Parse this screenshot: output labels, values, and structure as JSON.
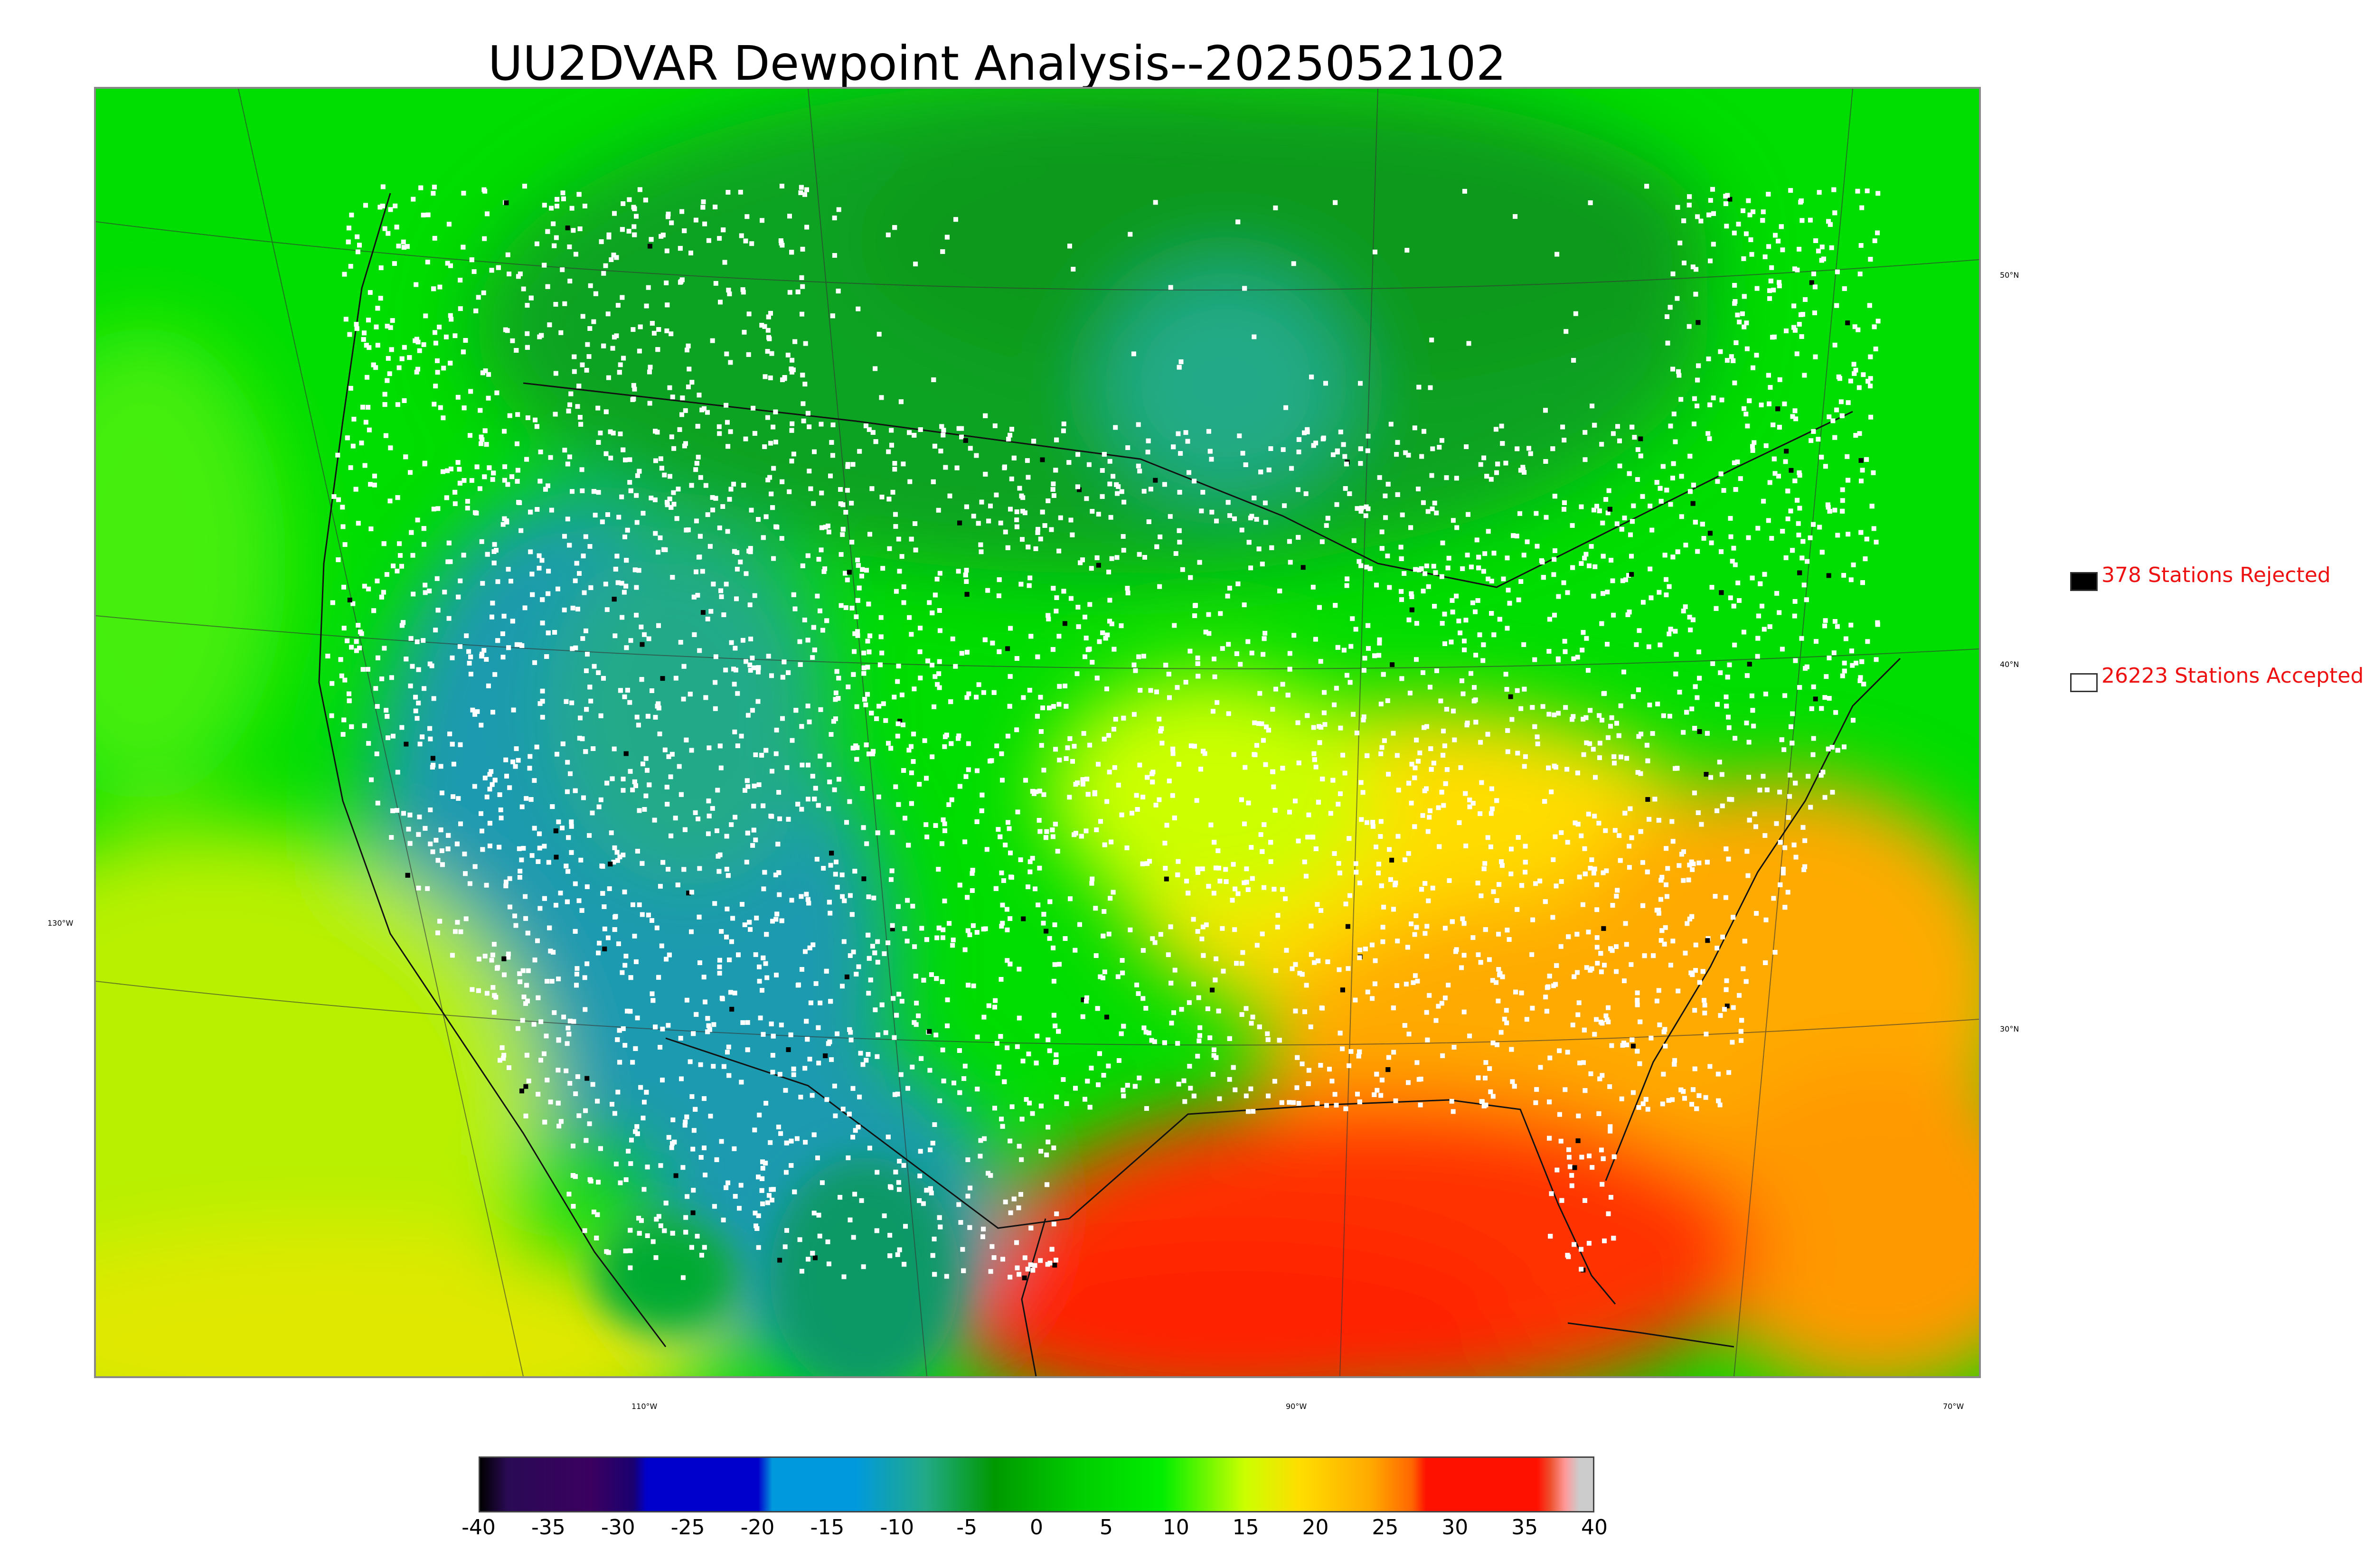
{
  "title": "UU2DVAR Dewpoint Analysis--2025052102",
  "legend": {
    "rejected": {
      "label": "378 Stations Rejected",
      "swatch_color": "#000000"
    },
    "accepted": {
      "label": "26223 Stations Accepted",
      "swatch_color": "#ffffff"
    },
    "text_color": "#ee1111"
  },
  "lat_labels": [
    "50°N",
    "40°N",
    "30°N"
  ],
  "lon_labels": [
    "130°W",
    "110°W",
    "90°W",
    "70°W"
  ],
  "colorbar": {
    "ticks": [
      "-40",
      "-35",
      "-30",
      "-25",
      "-20",
      "-15",
      "-10",
      "-5",
      "0",
      "5",
      "10",
      "15",
      "20",
      "25",
      "30",
      "35",
      "40"
    ],
    "min": -40,
    "max": 40,
    "stops": [
      {
        "value": -40,
        "color": "#000000"
      },
      {
        "value": -38,
        "color": "#2a0a55"
      },
      {
        "value": -32,
        "color": "#3b0060"
      },
      {
        "value": -29,
        "color": "#1a0070"
      },
      {
        "value": -28,
        "color": "#0000cc"
      },
      {
        "value": -20,
        "color": "#0000cc"
      },
      {
        "value": -19,
        "color": "#0099dd"
      },
      {
        "value": -13,
        "color": "#0099dd"
      },
      {
        "value": -8,
        "color": "#22aa88"
      },
      {
        "value": -3,
        "color": "#009900"
      },
      {
        "value": 3,
        "color": "#00cc00"
      },
      {
        "value": 9,
        "color": "#00ee00"
      },
      {
        "value": 15,
        "color": "#ccff00"
      },
      {
        "value": 19,
        "color": "#ffdd00"
      },
      {
        "value": 24,
        "color": "#ffaa00"
      },
      {
        "value": 27,
        "color": "#ff6600"
      },
      {
        "value": 28,
        "color": "#ff1100"
      },
      {
        "value": 36,
        "color": "#ff1100"
      },
      {
        "value": 37,
        "color": "#ee5533"
      },
      {
        "value": 38,
        "color": "#ff9999"
      },
      {
        "value": 39,
        "color": "#cccccc"
      },
      {
        "value": 40,
        "color": "#cccccc"
      }
    ]
  },
  "colors": {
    "frame": "#888888",
    "dry_blue": "#1a9ab0",
    "dark_green": "#0a9a1a",
    "green": "#00d000",
    "bright_green": "#22ee22",
    "yellow_green": "#ccff00",
    "yellow": "#ffdd00",
    "orange": "#ffaa00",
    "red": "#ff3300"
  }
}
